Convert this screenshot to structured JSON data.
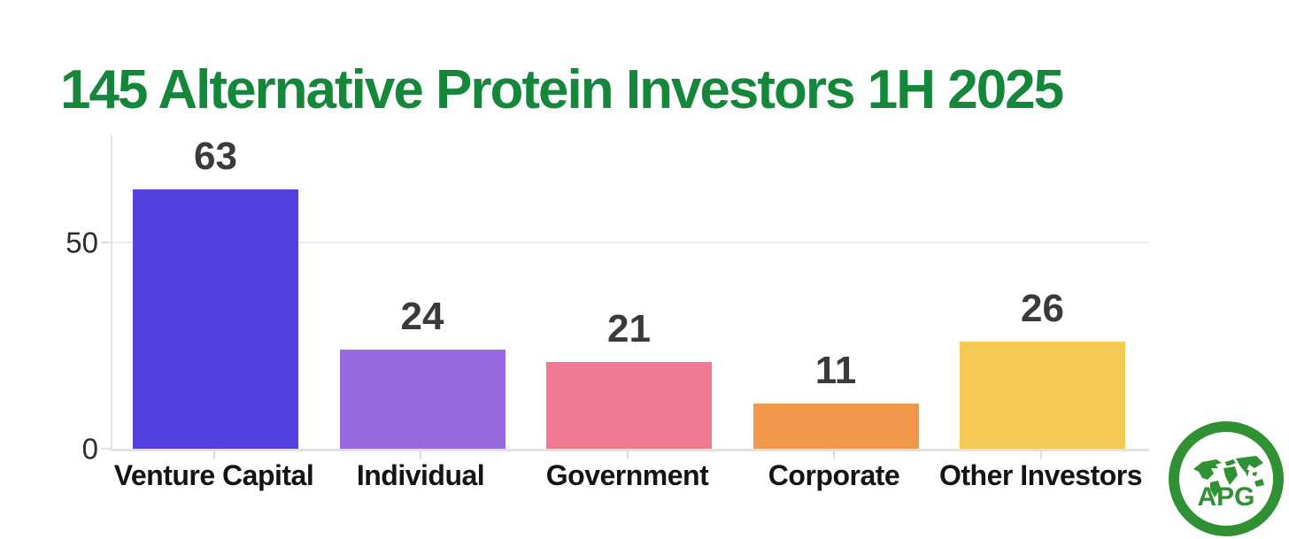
{
  "title": "145 Alternative Protein Investors 1H 2025",
  "chart_data": {
    "type": "bar",
    "title": "145 Alternative Protein Investors 1H 2025",
    "categories": [
      "Venture Capital",
      "Individual",
      "Government",
      "Corporate",
      "Other Investors"
    ],
    "values": [
      63,
      24,
      21,
      11,
      26
    ],
    "bar_colors": [
      "#5240DF",
      "#9669DF",
      "#EE7991",
      "#EF9849",
      "#F5CA54"
    ],
    "value_labels_shown": true,
    "xlabel": "",
    "ylabel": "",
    "ylim": [
      0,
      76
    ],
    "yticks": [
      {
        "label": "0",
        "value": 0
      },
      {
        "label": "50",
        "value": 50
      }
    ],
    "grid": "horizontal gridlines at labeled ticks",
    "legend_position": "none"
  },
  "logo": {
    "text": "APG",
    "description": "green ring badge with world map and APG wordmark"
  },
  "colors": {
    "title_green": "#15873B",
    "logo_green": "#2F9134",
    "value_label": "#3A3A3A",
    "category_label": "#141414",
    "axis_gray": "#E3E3E3",
    "background": "#FFFFFF"
  }
}
